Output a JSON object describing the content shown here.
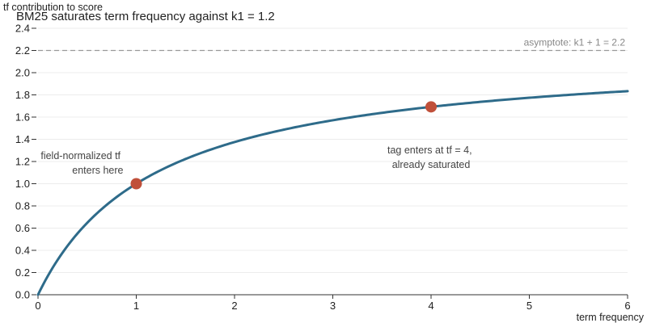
{
  "chart_data": {
    "type": "line",
    "title": "BM25 saturates term frequency against k1 = 1.2",
    "xlabel": "term frequency",
    "ylabel": "tf contribution to score",
    "xlim": [
      0,
      6
    ],
    "ylim": [
      0,
      2.4
    ],
    "x_ticks": [
      "0",
      "1",
      "2",
      "3",
      "4",
      "5",
      "6"
    ],
    "y_ticks": [
      "0.0",
      "0.2",
      "0.4",
      "0.6",
      "0.8",
      "1.0",
      "1.2",
      "1.4",
      "1.6",
      "1.8",
      "2.0",
      "2.2",
      "2.4"
    ],
    "grid": "horizontal",
    "k1": 1.2,
    "series": [
      {
        "color": "#2e6b8a",
        "x": [
          0,
          0.25,
          0.5,
          0.75,
          1,
          1.5,
          2,
          2.5,
          3,
          3.5,
          4,
          4.5,
          5,
          5.5,
          6
        ],
        "y": [
          0,
          0.379,
          0.647,
          0.846,
          1.0,
          1.222,
          1.375,
          1.486,
          1.571,
          1.638,
          1.692,
          1.737,
          1.774,
          1.806,
          1.833
        ]
      }
    ],
    "asymptote": {
      "y": 2.2,
      "label": "asymptote: k1 + 1 = 2.2",
      "color": "#999999"
    },
    "highlight_points": [
      {
        "x": 1,
        "y": 1.0,
        "color": "#c0503a"
      },
      {
        "x": 4,
        "y": 1.692,
        "color": "#c0503a"
      }
    ],
    "annotations": [
      {
        "lines": [
          "field-normalized tf",
          "enters here"
        ],
        "near_x": 1
      },
      {
        "lines": [
          "tag enters at tf = 4,",
          "already saturated"
        ],
        "near_x": 4
      }
    ]
  }
}
